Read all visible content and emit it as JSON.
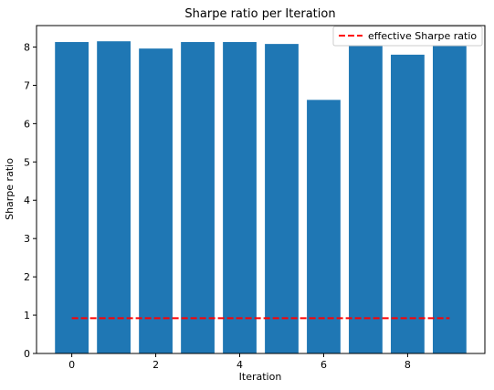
{
  "chart_data": {
    "type": "bar",
    "title": "Sharpe ratio per Iteration",
    "xlabel": "Iteration",
    "ylabel": "Sharpe ratio",
    "x": [
      0,
      1,
      2,
      3,
      4,
      5,
      6,
      7,
      8,
      9
    ],
    "values": [
      8.13,
      8.15,
      7.96,
      8.13,
      8.13,
      8.08,
      6.62,
      8.1,
      7.8,
      8.15
    ],
    "bar_color": "#1f77b4",
    "xlim": [
      -0.84,
      9.84
    ],
    "ylim": [
      0,
      8.56
    ],
    "xticks": [
      0,
      2,
      4,
      6,
      8
    ],
    "yticks": [
      0,
      1,
      2,
      3,
      4,
      5,
      6,
      7,
      8
    ],
    "grid": false,
    "legend_position": "top-right",
    "reference_line": {
      "name": "effective Sharpe ratio",
      "value": 0.92,
      "x_range": [
        0,
        9
      ],
      "color": "#ff0000",
      "style": "dashed"
    }
  }
}
